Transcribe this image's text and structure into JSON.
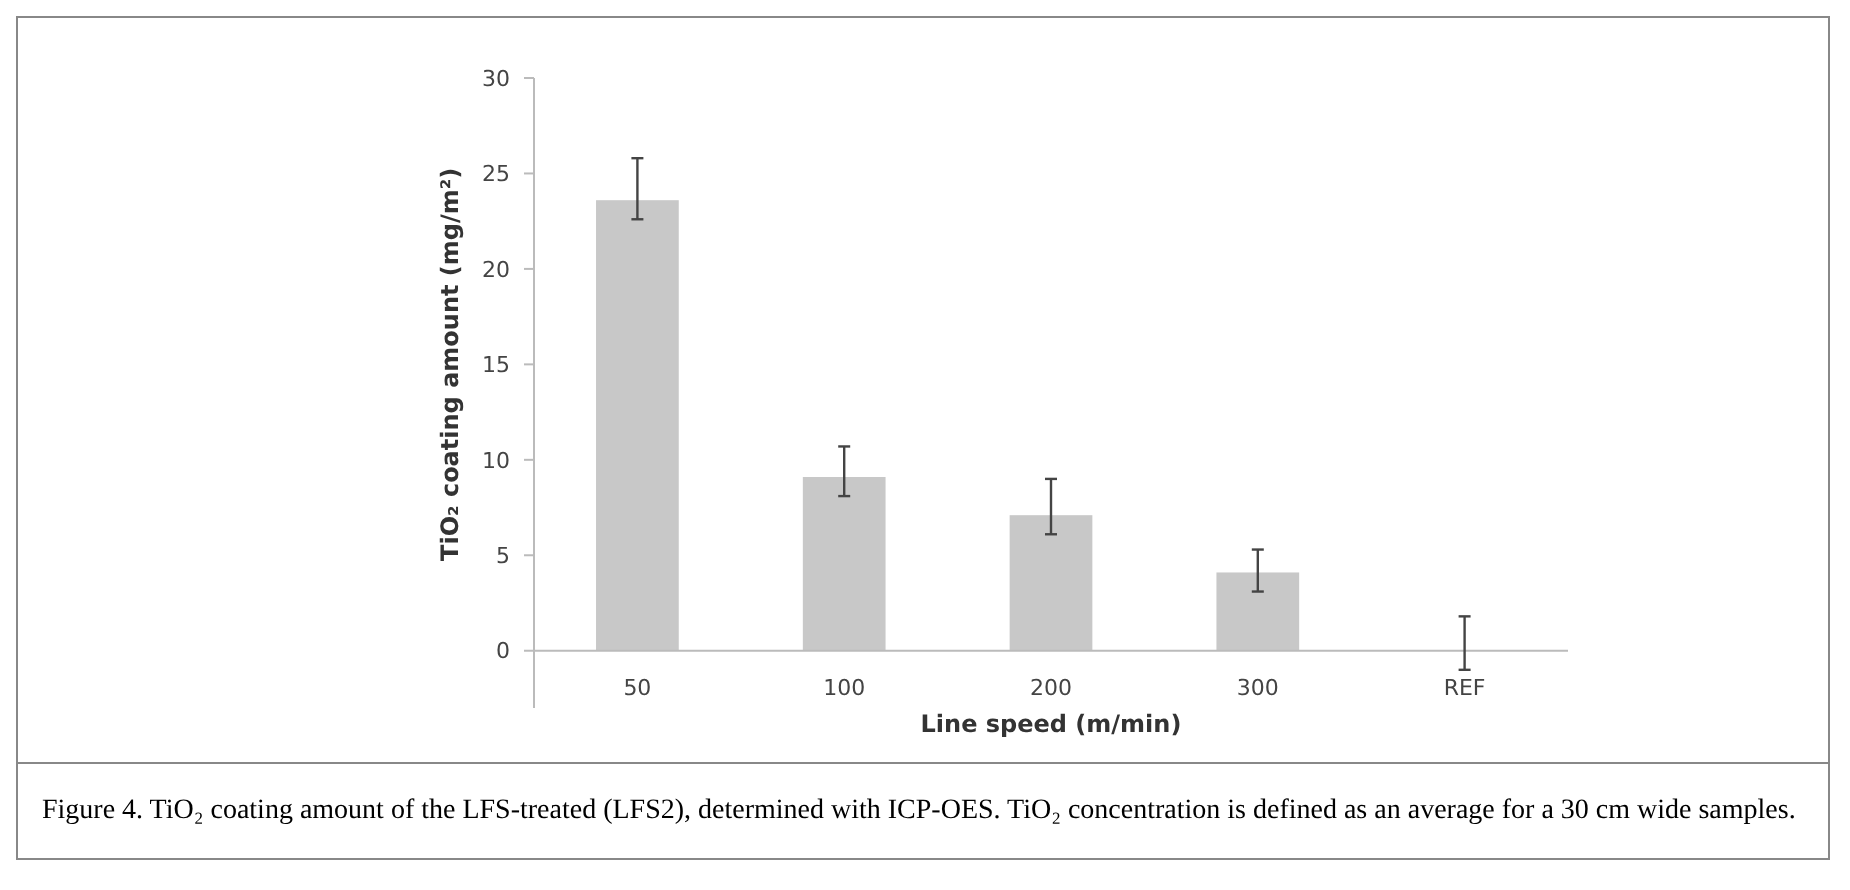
{
  "chart_data": {
    "type": "bar",
    "xlabel": "Line speed (m/min)",
    "ylabel": "TiO₂ coating amount (mg/m²)",
    "categories": [
      "50",
      "100",
      "200",
      "300",
      "REF"
    ],
    "values": [
      23.6,
      9.1,
      7.1,
      4.1,
      0
    ],
    "errors": [
      [
        22.6,
        25.8
      ],
      [
        8.1,
        10.7
      ],
      [
        6.1,
        9.0
      ],
      [
        3.1,
        5.3
      ],
      [
        -1,
        1.8
      ]
    ],
    "color": "#c8c8c8",
    "ylim": [
      -3,
      30
    ],
    "yticks": [
      0,
      5,
      10,
      15,
      20,
      25,
      30
    ],
    "annotations": [
      "Figure 4. TiO₂ coating amount of the LFS-treated (LFS2), determined with ICP-OES. TiO₂ concentration is defined as an average for a 30 cm wide samples."
    ]
  }
}
